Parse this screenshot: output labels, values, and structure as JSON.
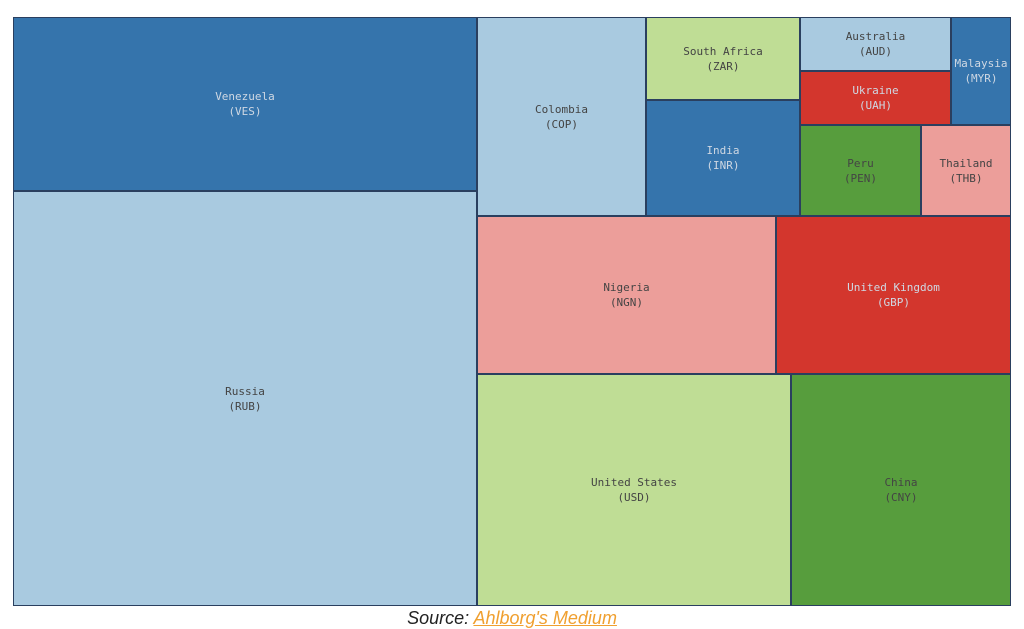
{
  "chart_data": {
    "type": "treemap",
    "colors": {
      "light_blue": "#a9cae0",
      "dark_blue": "#3574ac",
      "light_green": "#bfdd95",
      "dark_green": "#579d3d",
      "pink": "#ec9e9a",
      "red": "#d3362d"
    },
    "items": [
      {
        "name": "Venezuela",
        "code": "(VES)",
        "color": "#3574ac"
      },
      {
        "name": "Russia",
        "code": "(RUB)",
        "color": "#a9cae0"
      },
      {
        "name": "Colombia",
        "code": "(COP)",
        "color": "#a9cae0"
      },
      {
        "name": "South Africa",
        "code": "(ZAR)",
        "color": "#bfdd95"
      },
      {
        "name": "India",
        "code": "(INR)",
        "color": "#3574ac"
      },
      {
        "name": "Australia",
        "code": "(AUD)",
        "color": "#a9cae0"
      },
      {
        "name": "Malaysia",
        "code": "(MYR)",
        "color": "#3574ac"
      },
      {
        "name": "Ukraine",
        "code": "(UAH)",
        "color": "#d3362d"
      },
      {
        "name": "Peru",
        "code": "(PEN)",
        "color": "#579d3d"
      },
      {
        "name": "Thailand",
        "code": "(THB)",
        "color": "#ec9e9a"
      },
      {
        "name": "Nigeria",
        "code": "(NGN)",
        "color": "#ec9e9a"
      },
      {
        "name": "United Kingdom",
        "code": "(GBP)",
        "color": "#d3362d"
      },
      {
        "name": "United States",
        "code": "(USD)",
        "color": "#bfdd95"
      },
      {
        "name": "China",
        "code": "(CNY)",
        "color": "#579d3d"
      }
    ]
  },
  "caption": {
    "prefix": "Source: ",
    "link_text": "Ahlborg's Medium"
  }
}
